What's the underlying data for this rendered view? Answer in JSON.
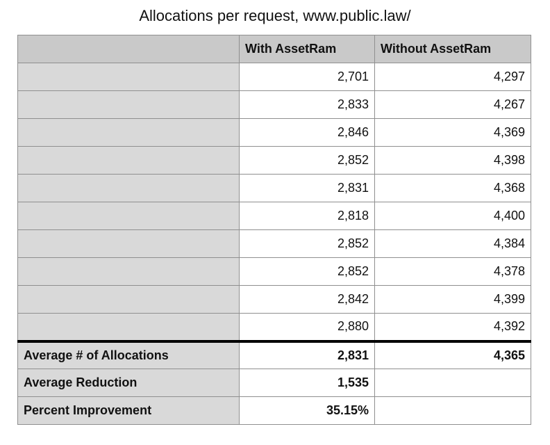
{
  "chart_data": {
    "type": "table",
    "title": "Allocations per request, www.public.law/",
    "columns": [
      "",
      "With AssetRam",
      "Without AssetRam"
    ],
    "rows": [
      {
        "label": "",
        "with": "2,701",
        "without": "4,297"
      },
      {
        "label": "",
        "with": "2,833",
        "without": "4,267"
      },
      {
        "label": "",
        "with": "2,846",
        "without": "4,369"
      },
      {
        "label": "",
        "with": "2,852",
        "without": "4,398"
      },
      {
        "label": "",
        "with": "2,831",
        "without": "4,368"
      },
      {
        "label": "",
        "with": "2,818",
        "without": "4,400"
      },
      {
        "label": "",
        "with": "2,852",
        "without": "4,384"
      },
      {
        "label": "",
        "with": "2,852",
        "without": "4,378"
      },
      {
        "label": "",
        "with": "2,842",
        "without": "4,399"
      },
      {
        "label": "",
        "with": "2,880",
        "without": "4,392"
      }
    ],
    "summary": [
      {
        "label": "Average # of Allocations",
        "with": "2,831",
        "without": "4,365"
      },
      {
        "label": "Average Reduction",
        "with": "1,535",
        "without": ""
      },
      {
        "label": "Percent Improvement",
        "with": "35.15%",
        "without": ""
      }
    ]
  },
  "colors": {
    "header_bg": "#c9c9c9",
    "label_bg": "#d9d9d9",
    "border": "#8f8f8f",
    "divider": "#000000"
  }
}
